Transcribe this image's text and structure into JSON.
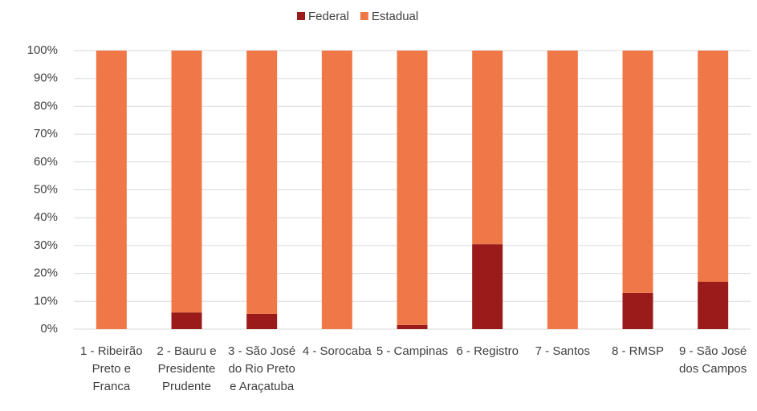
{
  "chart_data": {
    "type": "stacked_bar",
    "categories": [
      "1 - Ribeirão Preto e Franca",
      "2 - Bauru e Presidente Prudente",
      "3 - São José do Rio Preto e Araçatuba",
      "4 - Sorocaba",
      "5 - Campinas",
      "6 - Registro",
      "7 - Santos",
      "8 - RMSP",
      "9 - São José dos Campos"
    ],
    "series": [
      {
        "name": "Federal",
        "color": "#9b1b1b",
        "values": [
          0,
          6,
          5.5,
          0,
          1.5,
          30.5,
          0,
          13,
          17
        ]
      },
      {
        "name": "Estadual",
        "color": "#f07848",
        "values": [
          100,
          94,
          94.5,
          100,
          98.5,
          69.5,
          100,
          87,
          83
        ]
      }
    ],
    "ylim": [
      0,
      100
    ],
    "yticks": [
      {
        "value": 0,
        "label": "0%"
      },
      {
        "value": 10,
        "label": "10%"
      },
      {
        "value": 20,
        "label": "20%"
      },
      {
        "value": 30,
        "label": "30%"
      },
      {
        "value": 40,
        "label": "40%"
      },
      {
        "value": 50,
        "label": "50%"
      },
      {
        "value": 60,
        "label": "60%"
      },
      {
        "value": 70,
        "label": "70%"
      },
      {
        "value": 80,
        "label": "80%"
      },
      {
        "value": 90,
        "label": "90%"
      },
      {
        "value": 100,
        "label": "100%"
      }
    ],
    "legend": "top"
  }
}
